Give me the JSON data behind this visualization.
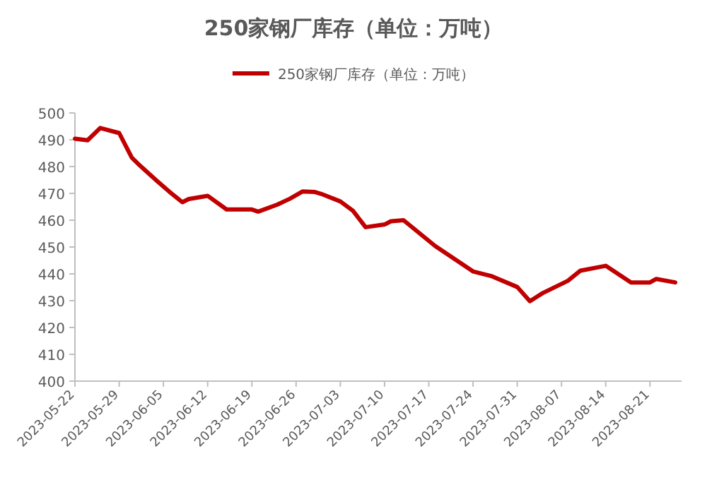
{
  "chart_data": {
    "type": "line",
    "title": "250家钢厂库存（单位：万吨）",
    "legend": "top",
    "x": [
      "2023-05-22",
      "2023-05-24",
      "2023-05-26",
      "2023-05-29",
      "2023-05-31",
      "2023-06-01",
      "2023-06-04",
      "2023-06-06",
      "2023-06-08",
      "2023-06-09",
      "2023-06-12",
      "2023-06-15",
      "2023-06-19",
      "2023-06-20",
      "2023-06-23",
      "2023-06-25",
      "2023-06-27",
      "2023-06-29",
      "2023-06-30",
      "2023-07-03",
      "2023-07-05",
      "2023-07-07",
      "2023-07-10",
      "2023-07-11",
      "2023-07-13",
      "2023-07-18",
      "2023-07-24",
      "2023-07-27",
      "2023-07-31",
      "2023-08-02",
      "2023-08-04",
      "2023-08-08",
      "2023-08-10",
      "2023-08-14",
      "2023-08-18",
      "2023-08-21",
      "2023-08-22",
      "2023-08-25"
    ],
    "series": [
      {
        "name": "250家钢厂库存（单位：万吨）",
        "color": "#c00000",
        "values": [
          490.4,
          489.8,
          494.4,
          492.5,
          483.3,
          481,
          474.6,
          470.5,
          466.7,
          467.9,
          469.1,
          464,
          464,
          463.2,
          465.8,
          468,
          470.7,
          470.5,
          469.8,
          467,
          463.5,
          457.4,
          458.4,
          459.6,
          460,
          450.4,
          440.9,
          439.1,
          435.1,
          429.8,
          432.8,
          437.4,
          441.2,
          443,
          436.8,
          436.8,
          438.1,
          436.8
        ]
      }
    ],
    "xlim": [
      "2023-05-22",
      "2023-08-26"
    ],
    "xticks": [
      "2023-05-22",
      "2023-05-29",
      "2023-06-05",
      "2023-06-12",
      "2023-06-19",
      "2023-06-26",
      "2023-07-03",
      "2023-07-10",
      "2023-07-17",
      "2023-07-24",
      "2023-07-31",
      "2023-08-07",
      "2023-08-14",
      "2023-08-21"
    ],
    "ylim": [
      400,
      500
    ],
    "yticks": [
      400,
      410,
      420,
      430,
      440,
      450,
      460,
      470,
      480,
      490,
      500
    ]
  }
}
